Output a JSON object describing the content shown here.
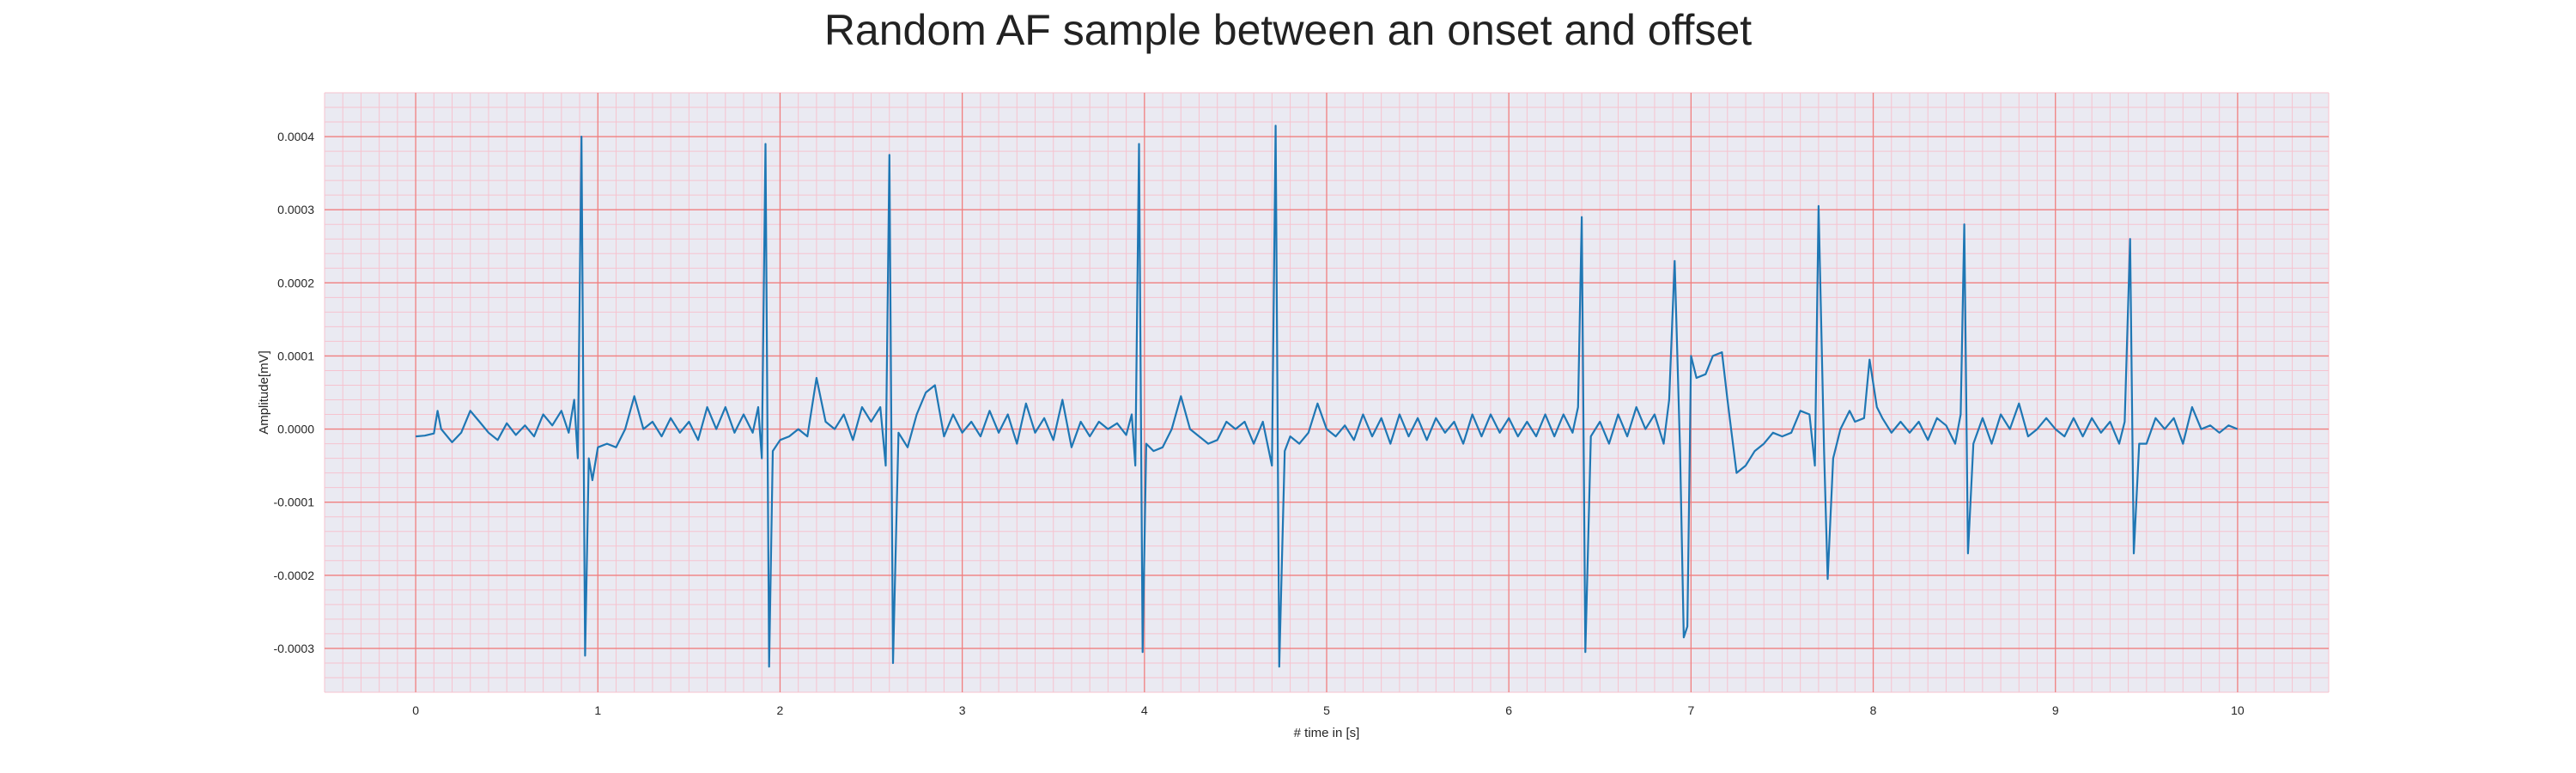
{
  "chart_data": {
    "type": "line",
    "title": "Random AF sample between an onset and offset",
    "xlabel": "# time in [s]",
    "ylabel": "Amplitude[mV]",
    "xlim": [
      -0.5,
      10.5
    ],
    "ylim": [
      -0.00036,
      0.00046
    ],
    "x_ticks": [
      0,
      1,
      2,
      3,
      4,
      5,
      6,
      7,
      8,
      9,
      10
    ],
    "y_ticks": [
      -0.0003,
      -0.0002,
      -0.0001,
      0.0,
      0.0001,
      0.0002,
      0.0003,
      0.0004
    ],
    "x_tick_labels": [
      "0",
      "1",
      "2",
      "3",
      "4",
      "5",
      "6",
      "7",
      "8",
      "9",
      "10"
    ],
    "y_tick_labels": [
      "-0.0003",
      "-0.0002",
      "-0.0001",
      "0.0000",
      "0.0001",
      "0.0002",
      "0.0003",
      "0.0004"
    ],
    "grid": true,
    "minor_grid": true,
    "colors": {
      "background": "#eaeaf2",
      "major_grid": "#f07f7f",
      "minor_grid": "#f6c3cf",
      "line": "#1f77b4"
    },
    "series": [
      {
        "values": [
          [
            0.0,
            -1e-05
          ],
          [
            0.05,
            -9e-06
          ],
          [
            0.1,
            -6e-06
          ],
          [
            0.12,
            2.5e-05
          ],
          [
            0.14,
            0.0
          ],
          [
            0.2,
            -1.8e-05
          ],
          [
            0.25,
            -5e-06
          ],
          [
            0.3,
            2.5e-05
          ],
          [
            0.35,
            1e-05
          ],
          [
            0.4,
            -5e-06
          ],
          [
            0.45,
            -1.5e-05
          ],
          [
            0.5,
            8e-06
          ],
          [
            0.55,
            -8e-06
          ],
          [
            0.6,
            5e-06
          ],
          [
            0.65,
            -1e-05
          ],
          [
            0.7,
            2e-05
          ],
          [
            0.75,
            5e-06
          ],
          [
            0.8,
            2.5e-05
          ],
          [
            0.84,
            -5e-06
          ],
          [
            0.87,
            4e-05
          ],
          [
            0.89,
            -4e-05
          ],
          [
            0.91,
            0.0004
          ],
          [
            0.93,
            -0.00031
          ],
          [
            0.95,
            -4e-05
          ],
          [
            0.97,
            -7e-05
          ],
          [
            1.0,
            -2.5e-05
          ],
          [
            1.05,
            -2e-05
          ],
          [
            1.1,
            -2.5e-05
          ],
          [
            1.15,
            0.0
          ],
          [
            1.2,
            4.5e-05
          ],
          [
            1.25,
            0.0
          ],
          [
            1.3,
            1e-05
          ],
          [
            1.35,
            -1e-05
          ],
          [
            1.4,
            1.5e-05
          ],
          [
            1.45,
            -5e-06
          ],
          [
            1.5,
            1e-05
          ],
          [
            1.55,
            -1.5e-05
          ],
          [
            1.6,
            3e-05
          ],
          [
            1.65,
            0.0
          ],
          [
            1.7,
            3e-05
          ],
          [
            1.75,
            -5e-06
          ],
          [
            1.8,
            2e-05
          ],
          [
            1.85,
            -5e-06
          ],
          [
            1.88,
            3e-05
          ],
          [
            1.9,
            -4e-05
          ],
          [
            1.92,
            0.00039
          ],
          [
            1.94,
            -0.000325
          ],
          [
            1.96,
            -3e-05
          ],
          [
            2.0,
            -1.5e-05
          ],
          [
            2.05,
            -1e-05
          ],
          [
            2.1,
            0.0
          ],
          [
            2.15,
            -1e-05
          ],
          [
            2.2,
            7e-05
          ],
          [
            2.25,
            1e-05
          ],
          [
            2.3,
            0.0
          ],
          [
            2.35,
            2e-05
          ],
          [
            2.4,
            -1.5e-05
          ],
          [
            2.45,
            3e-05
          ],
          [
            2.5,
            1e-05
          ],
          [
            2.55,
            3e-05
          ],
          [
            2.58,
            -5e-05
          ],
          [
            2.6,
            0.000375
          ],
          [
            2.62,
            -0.00032
          ],
          [
            2.65,
            -5e-06
          ],
          [
            2.7,
            -2.5e-05
          ],
          [
            2.75,
            2e-05
          ],
          [
            2.8,
            5e-05
          ],
          [
            2.85,
            6e-05
          ],
          [
            2.9,
            -1e-05
          ],
          [
            2.95,
            2e-05
          ],
          [
            3.0,
            -5e-06
          ],
          [
            3.05,
            1e-05
          ],
          [
            3.1,
            -1e-05
          ],
          [
            3.15,
            2.5e-05
          ],
          [
            3.2,
            -5e-06
          ],
          [
            3.25,
            2e-05
          ],
          [
            3.3,
            -2e-05
          ],
          [
            3.35,
            3.5e-05
          ],
          [
            3.4,
            -5e-06
          ],
          [
            3.45,
            1.5e-05
          ],
          [
            3.5,
            -1.5e-05
          ],
          [
            3.55,
            4e-05
          ],
          [
            3.6,
            -2.5e-05
          ],
          [
            3.65,
            1e-05
          ],
          [
            3.7,
            -1e-05
          ],
          [
            3.75,
            1e-05
          ],
          [
            3.8,
            0.0
          ],
          [
            3.85,
            8e-06
          ],
          [
            3.9,
            -8e-06
          ],
          [
            3.93,
            2e-05
          ],
          [
            3.95,
            -5e-05
          ],
          [
            3.97,
            0.00039
          ],
          [
            3.99,
            -0.000305
          ],
          [
            4.01,
            -2e-05
          ],
          [
            4.05,
            -3e-05
          ],
          [
            4.1,
            -2.5e-05
          ],
          [
            4.15,
            0.0
          ],
          [
            4.2,
            4.5e-05
          ],
          [
            4.25,
            0.0
          ],
          [
            4.3,
            -1e-05
          ],
          [
            4.35,
            -2e-05
          ],
          [
            4.4,
            -1.5e-05
          ],
          [
            4.45,
            1e-05
          ],
          [
            4.5,
            0.0
          ],
          [
            4.55,
            1e-05
          ],
          [
            4.6,
            -2e-05
          ],
          [
            4.65,
            1e-05
          ],
          [
            4.7,
            -5e-05
          ],
          [
            4.72,
            0.000415
          ],
          [
            4.74,
            -0.000325
          ],
          [
            4.77,
            -3e-05
          ],
          [
            4.8,
            -1e-05
          ],
          [
            4.85,
            -2e-05
          ],
          [
            4.9,
            -5e-06
          ],
          [
            4.95,
            3.5e-05
          ],
          [
            5.0,
            0.0
          ],
          [
            5.05,
            -1e-05
          ],
          [
            5.1,
            5e-06
          ],
          [
            5.15,
            -1.5e-05
          ],
          [
            5.2,
            2e-05
          ],
          [
            5.25,
            -1e-05
          ],
          [
            5.3,
            1.5e-05
          ],
          [
            5.35,
            -2e-05
          ],
          [
            5.4,
            2e-05
          ],
          [
            5.45,
            -1e-05
          ],
          [
            5.5,
            1.5e-05
          ],
          [
            5.55,
            -1.5e-05
          ],
          [
            5.6,
            1.5e-05
          ],
          [
            5.65,
            -5e-06
          ],
          [
            5.7,
            1e-05
          ],
          [
            5.75,
            -2e-05
          ],
          [
            5.8,
            2e-05
          ],
          [
            5.85,
            -1e-05
          ],
          [
            5.9,
            2e-05
          ],
          [
            5.95,
            -5e-06
          ],
          [
            6.0,
            1.5e-05
          ],
          [
            6.05,
            -1e-05
          ],
          [
            6.1,
            1e-05
          ],
          [
            6.15,
            -1e-05
          ],
          [
            6.2,
            2e-05
          ],
          [
            6.25,
            -1e-05
          ],
          [
            6.3,
            2e-05
          ],
          [
            6.35,
            -5e-06
          ],
          [
            6.38,
            3e-05
          ],
          [
            6.4,
            0.00029
          ],
          [
            6.42,
            -0.000305
          ],
          [
            6.45,
            -1e-05
          ],
          [
            6.5,
            1e-05
          ],
          [
            6.55,
            -2e-05
          ],
          [
            6.6,
            2e-05
          ],
          [
            6.65,
            -1e-05
          ],
          [
            6.7,
            3e-05
          ],
          [
            6.75,
            0.0
          ],
          [
            6.8,
            2e-05
          ],
          [
            6.85,
            -2e-05
          ],
          [
            6.88,
            4e-05
          ],
          [
            6.91,
            0.00023
          ],
          [
            6.94,
            -3e-05
          ],
          [
            6.96,
            -0.000285
          ],
          [
            6.98,
            -0.00027
          ],
          [
            7.0,
            0.0001
          ],
          [
            7.03,
            7e-05
          ],
          [
            7.08,
            7.5e-05
          ],
          [
            7.12,
            0.0001
          ],
          [
            7.17,
            0.000105
          ],
          [
            7.2,
            4e-05
          ],
          [
            7.25,
            -6e-05
          ],
          [
            7.3,
            -5e-05
          ],
          [
            7.35,
            -3e-05
          ],
          [
            7.4,
            -2e-05
          ],
          [
            7.45,
            -5e-06
          ],
          [
            7.5,
            -1e-05
          ],
          [
            7.55,
            -5e-06
          ],
          [
            7.6,
            2.5e-05
          ],
          [
            7.65,
            2e-05
          ],
          [
            7.68,
            -5e-05
          ],
          [
            7.7,
            0.000305
          ],
          [
            7.73,
            -3e-05
          ],
          [
            7.75,
            -0.000205
          ],
          [
            7.78,
            -4e-05
          ],
          [
            7.82,
            0.0
          ],
          [
            7.87,
            2.5e-05
          ],
          [
            7.9,
            1e-05
          ],
          [
            7.95,
            1.5e-05
          ],
          [
            7.98,
            9.5e-05
          ],
          [
            8.02,
            3e-05
          ],
          [
            8.05,
            1.5e-05
          ],
          [
            8.1,
            -5e-06
          ],
          [
            8.15,
            1e-05
          ],
          [
            8.2,
            -5e-06
          ],
          [
            8.25,
            1e-05
          ],
          [
            8.3,
            -1.5e-05
          ],
          [
            8.35,
            1.5e-05
          ],
          [
            8.4,
            5e-06
          ],
          [
            8.45,
            -2e-05
          ],
          [
            8.48,
            2e-05
          ],
          [
            8.5,
            0.00028
          ],
          [
            8.52,
            -0.00017
          ],
          [
            8.55,
            -2e-05
          ],
          [
            8.6,
            1.5e-05
          ],
          [
            8.65,
            -2e-05
          ],
          [
            8.7,
            2e-05
          ],
          [
            8.75,
            0.0
          ],
          [
            8.8,
            3.5e-05
          ],
          [
            8.85,
            -1e-05
          ],
          [
            8.9,
            0.0
          ],
          [
            8.95,
            1.5e-05
          ],
          [
            9.0,
            0.0
          ],
          [
            9.05,
            -1e-05
          ],
          [
            9.1,
            1.5e-05
          ],
          [
            9.15,
            -1e-05
          ],
          [
            9.2,
            1.5e-05
          ],
          [
            9.25,
            -5e-06
          ],
          [
            9.3,
            1e-05
          ],
          [
            9.35,
            -2e-05
          ],
          [
            9.38,
            1e-05
          ],
          [
            9.41,
            0.00026
          ],
          [
            9.43,
            -0.00017
          ],
          [
            9.46,
            -2e-05
          ],
          [
            9.5,
            -2e-05
          ],
          [
            9.55,
            1.5e-05
          ],
          [
            9.6,
            0.0
          ],
          [
            9.65,
            1.5e-05
          ],
          [
            9.7,
            -2e-05
          ],
          [
            9.75,
            3e-05
          ],
          [
            9.8,
            0.0
          ],
          [
            9.85,
            5e-06
          ],
          [
            9.9,
            -5e-06
          ],
          [
            9.95,
            5e-06
          ],
          [
            10.0,
            0.0
          ]
        ]
      }
    ]
  }
}
